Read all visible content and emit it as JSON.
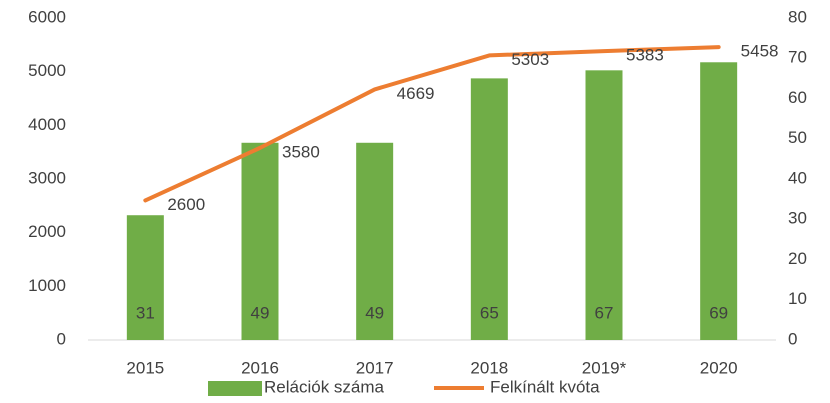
{
  "chart_data": {
    "type": "bar_line",
    "categories": [
      "2015",
      "2016",
      "2017",
      "2018",
      "2019*",
      "2020"
    ],
    "series": [
      {
        "name": "Relációk száma",
        "color": "#70ad47",
        "type": "bar",
        "axis": "y2",
        "values": [
          31,
          49,
          49,
          65,
          67,
          69
        ]
      },
      {
        "name": "Felkínált kvóta",
        "color": "#ed7d31",
        "type": "line",
        "axis": "y",
        "values": [
          2600,
          3580,
          4669,
          5303,
          5383,
          5458
        ]
      }
    ],
    "ylim": [
      0,
      6000
    ],
    "yticks": [
      0,
      1000,
      2000,
      3000,
      4000,
      5000,
      6000
    ],
    "y2lim": [
      0,
      80
    ],
    "y2ticks": [
      0,
      10,
      20,
      30,
      40,
      50,
      60,
      70,
      80
    ],
    "grid": false,
    "legend": "bottom"
  }
}
